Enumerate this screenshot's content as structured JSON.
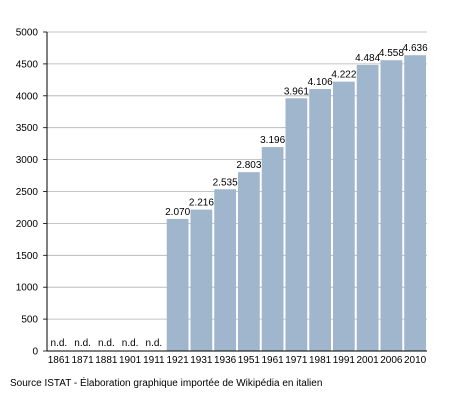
{
  "chart_data": {
    "type": "bar",
    "categories": [
      "1861",
      "1871",
      "1881",
      "1901",
      "1911",
      "1921",
      "1931",
      "1936",
      "1951",
      "1961",
      "1971",
      "1981",
      "1991",
      "2001",
      "2006",
      "2010"
    ],
    "values": [
      null,
      null,
      null,
      null,
      null,
      2070,
      2216,
      2535,
      2803,
      3196,
      3961,
      4106,
      4222,
      4484,
      4558,
      4636
    ],
    "value_labels": [
      "n.d.",
      "n.d.",
      "n.d.",
      "n.d.",
      "n.d.",
      "2.070",
      "2.216",
      "2.535",
      "2.803",
      "3.196",
      "3.961",
      "4.106",
      "4.222",
      "4.484",
      "4.558",
      "4.636"
    ],
    "ylim": [
      0,
      5000
    ],
    "yticks": [
      0,
      500,
      1000,
      1500,
      2000,
      2500,
      3000,
      3500,
      4000,
      4500,
      5000
    ],
    "ytick_labels": [
      "0",
      "500",
      "1000",
      "1500",
      "2000",
      "2500",
      "3000",
      "3500",
      "4000",
      "4500",
      "5000"
    ],
    "grid": "horizontal",
    "bar_color": "#9fb6cd",
    "grid_color": "#b0b0b0"
  },
  "source_note": "Source ISTAT - Élaboration graphique importée de Wikipédia en italien"
}
